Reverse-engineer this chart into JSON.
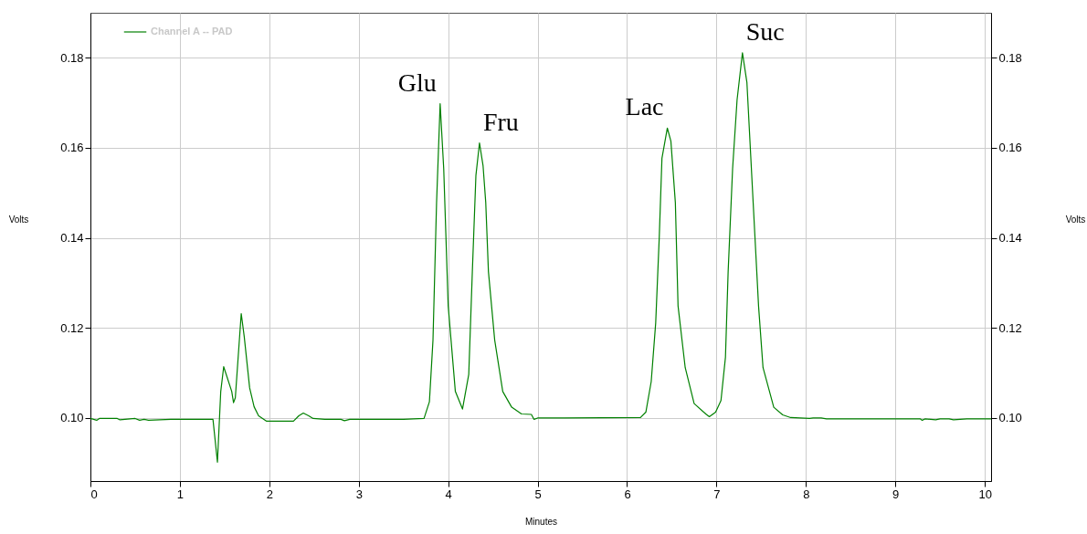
{
  "chart_data": {
    "type": "line",
    "xlabel": "Minutes",
    "ylabel": "Volts",
    "y2label": "Volts",
    "xlim": [
      0,
      10.07
    ],
    "ylim": [
      0.086,
      0.19
    ],
    "y2lim": [
      0.086,
      0.19
    ],
    "xticks": [
      0,
      1,
      2,
      3,
      4,
      5,
      6,
      7,
      8,
      9,
      10
    ],
    "yticks": [
      {
        "value": 0.1,
        "label": "0.10"
      },
      0.12,
      0.14,
      0.16,
      0.18
    ],
    "y2ticks": [
      {
        "value": 0.1,
        "label": "0.10"
      },
      0.12,
      0.14,
      0.16,
      0.18
    ],
    "grid": true,
    "legend": "top left",
    "x": [
      0,
      0.07,
      0.1,
      0.3,
      0.33,
      0.5,
      0.55,
      0.6,
      0.65,
      0.9,
      1.2,
      1.37,
      1.42,
      1.457,
      1.49,
      1.58,
      1.6,
      1.62,
      1.686,
      1.72,
      1.78,
      1.83,
      1.88,
      1.97,
      2.27,
      2.33,
      2.38,
      2.44,
      2.49,
      2.62,
      2.8,
      2.84,
      2.9,
      3.3,
      3.5,
      3.73,
      3.79,
      3.83,
      3.87,
      3.91,
      3.95,
      4.0,
      4.08,
      4.16,
      4.23,
      4.27,
      4.31,
      4.35,
      4.39,
      4.42,
      4.45,
      4.52,
      4.61,
      4.71,
      4.82,
      4.93,
      4.96,
      5.0,
      5.3,
      6.15,
      6.21,
      6.27,
      6.32,
      6.36,
      6.39,
      6.45,
      6.49,
      6.54,
      6.57,
      6.65,
      6.75,
      6.88,
      6.92,
      6.99,
      7.05,
      7.1,
      7.13,
      7.18,
      7.23,
      7.29,
      7.34,
      7.41,
      7.47,
      7.52,
      7.64,
      7.74,
      7.83,
      8.04,
      8.08,
      8.17,
      8.23,
      9.28,
      9.3,
      9.33,
      9.45,
      9.5,
      9.6,
      9.65,
      9.8,
      10.07
    ],
    "series": [
      {
        "name": "Channel A -- PAD",
        "color": "#008000",
        "line_style": "solid",
        "values": [
          0.0999,
          0.0995,
          0.0999,
          0.0999,
          0.0996,
          0.0999,
          0.0995,
          0.0997,
          0.0995,
          0.0997,
          0.0997,
          0.0997,
          0.0902,
          0.1059,
          0.1114,
          0.1059,
          0.1034,
          0.1045,
          0.1232,
          0.118,
          0.1067,
          0.1025,
          0.1005,
          0.0993,
          0.0993,
          0.1005,
          0.1011,
          0.1005,
          0.0999,
          0.0997,
          0.0997,
          0.0994,
          0.0997,
          0.0997,
          0.0997,
          0.0999,
          0.1036,
          0.1173,
          0.1478,
          0.1698,
          0.1554,
          0.1249,
          0.1059,
          0.102,
          0.1097,
          0.1325,
          0.1539,
          0.1611,
          0.156,
          0.1478,
          0.1325,
          0.1173,
          0.1059,
          0.1024,
          0.1009,
          0.1008,
          0.0997,
          0.1,
          0.1,
          0.1001,
          0.1013,
          0.1081,
          0.1211,
          0.1402,
          0.1577,
          0.1644,
          0.1615,
          0.1478,
          0.1249,
          0.1112,
          0.1032,
          0.1009,
          0.1003,
          0.1013,
          0.1039,
          0.1135,
          0.1325,
          0.1554,
          0.1707,
          0.1811,
          0.1745,
          0.1478,
          0.1249,
          0.1112,
          0.1024,
          0.1007,
          0.1001,
          0.0999,
          0.1,
          0.1,
          0.0998,
          0.0998,
          0.0995,
          0.0998,
          0.0996,
          0.0998,
          0.0998,
          0.0996,
          0.0998,
          0.0998
        ]
      }
    ],
    "annotations": [
      {
        "text": "Glu",
        "x": 3.91,
        "y": 0.1698
      },
      {
        "text": "Fru",
        "x": 4.35,
        "y": 0.1611
      },
      {
        "text": "Lac",
        "x": 6.45,
        "y": 0.1644
      },
      {
        "text": "Suc",
        "x": 7.29,
        "y": 0.1811
      }
    ]
  }
}
